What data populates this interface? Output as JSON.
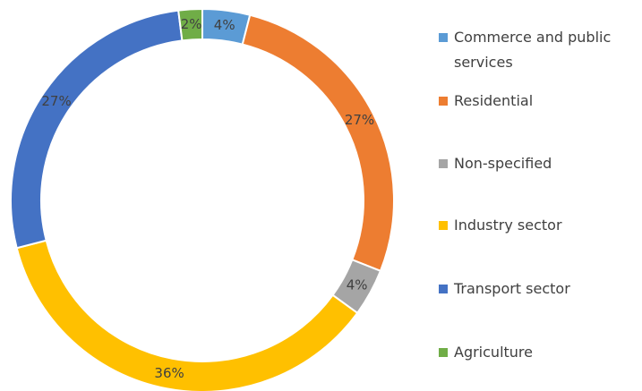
{
  "chart_data": {
    "type": "donut",
    "categories": [
      "Commerce and public services",
      "Residential",
      "Non-specified",
      "Industry sector",
      "Transport sector",
      "Agriculture"
    ],
    "values": [
      4,
      27,
      4,
      36,
      27,
      2
    ],
    "value_labels": [
      "4%",
      "27%",
      "4%",
      "36%",
      "27%",
      "2%"
    ],
    "colors": [
      "#5b9bd5",
      "#ed7d31",
      "#a5a5a5",
      "#ffc000",
      "#4472c4",
      "#70ad47"
    ],
    "legend": "right"
  }
}
